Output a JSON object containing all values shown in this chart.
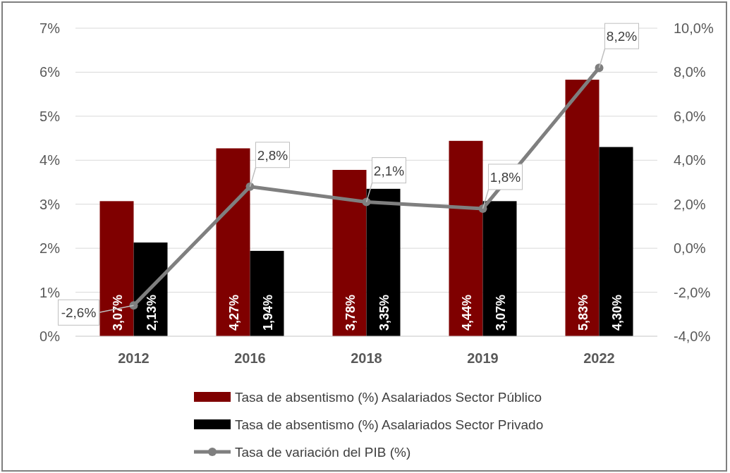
{
  "chart_data": {
    "type": "bar",
    "categories": [
      "2012",
      "2016",
      "2018",
      "2019",
      "2022"
    ],
    "series": [
      {
        "name": "Tasa de absentismo (%) Asalariados Sector Público",
        "color": "#7f0000",
        "values": [
          3.07,
          4.27,
          3.78,
          4.44,
          5.83
        ],
        "value_labels": [
          "3,07%",
          "4,27%",
          "3,78%",
          "4,44%",
          "5,83%"
        ]
      },
      {
        "name": "Tasa de absentismo (%) Asalariados Sector Privado",
        "color": "#000000",
        "values": [
          2.13,
          1.94,
          3.35,
          3.07,
          4.3
        ],
        "value_labels": [
          "2,13%",
          "1,94%",
          "3,35%",
          "3,07%",
          "4,30%"
        ]
      },
      {
        "name": "Tasa de variación del PIB (%)",
        "type": "line",
        "axis": "y2",
        "color": "#7f7f7f",
        "marker": "circle",
        "line_style": "solid",
        "values": [
          -2.6,
          2.8,
          2.1,
          1.8,
          8.2
        ],
        "value_labels": [
          "-2,6%",
          "2,8%",
          "2,1%",
          "1,8%",
          "8,2%"
        ]
      }
    ],
    "ylim": [
      0,
      7
    ],
    "yticks": [
      {
        "value": 0,
        "label": "0%"
      },
      {
        "value": 1,
        "label": "1%"
      },
      {
        "value": 2,
        "label": "2%"
      },
      {
        "value": 3,
        "label": "3%"
      },
      {
        "value": 4,
        "label": "4%"
      },
      {
        "value": 5,
        "label": "5%"
      },
      {
        "value": 6,
        "label": "6%"
      },
      {
        "value": 7,
        "label": "7%"
      }
    ],
    "y2lim": [
      -4,
      10
    ],
    "y2ticks": [
      {
        "value": -4,
        "label": "-4,0%"
      },
      {
        "value": -2,
        "label": "-2,0%"
      },
      {
        "value": 0,
        "label": "0,0%"
      },
      {
        "value": 2,
        "label": "2,0%"
      },
      {
        "value": 4,
        "label": "4,0%"
      },
      {
        "value": 6,
        "label": "6,0%"
      },
      {
        "value": 8,
        "label": "8,0%"
      },
      {
        "value": 10,
        "label": "10,0%"
      }
    ],
    "grid": "y",
    "legend": "bottom"
  }
}
